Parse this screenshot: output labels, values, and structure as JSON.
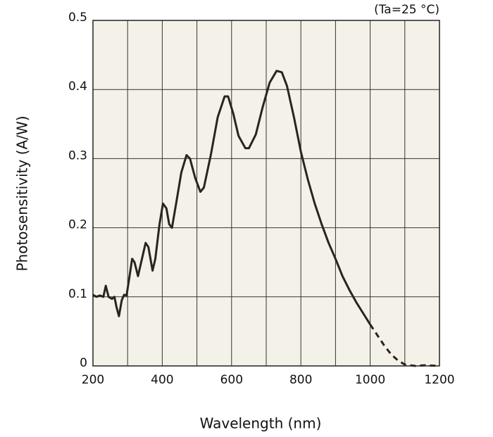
{
  "chart_data": {
    "type": "line",
    "annotation": "(Ta=25 °C)",
    "xlabel": "Wavelength (nm)",
    "ylabel": "Photosensitivity (A/W)",
    "xlim": [
      200,
      1200
    ],
    "ylim": [
      0,
      0.5
    ],
    "xticks": [
      200,
      400,
      600,
      800,
      1000,
      1200
    ],
    "xgrid": [
      200,
      300,
      400,
      500,
      600,
      700,
      800,
      900,
      1000,
      1100,
      1200
    ],
    "yticks": [
      0,
      0.1,
      0.2,
      0.3,
      0.4,
      0.5
    ],
    "grid": true,
    "background": "#f4f2e8",
    "series": [
      {
        "color": "#2a2420",
        "dashed": false,
        "x": [
          200,
          210,
          220,
          230,
          237,
          245,
          255,
          262,
          268,
          275,
          283,
          290,
          297,
          305,
          313,
          320,
          330,
          340,
          352,
          360,
          372,
          380,
          392,
          402,
          412,
          420,
          428,
          440,
          455,
          470,
          480,
          495,
          510,
          520,
          540,
          560,
          580,
          590,
          605,
          620,
          640,
          650,
          670,
          690,
          710,
          730,
          745,
          760,
          780,
          800,
          820,
          840,
          860,
          880,
          900,
          920,
          940,
          960,
          980,
          1000
        ],
        "values": [
          0.103,
          0.1,
          0.102,
          0.1,
          0.116,
          0.1,
          0.097,
          0.1,
          0.085,
          0.072,
          0.095,
          0.103,
          0.102,
          0.128,
          0.155,
          0.15,
          0.13,
          0.152,
          0.178,
          0.172,
          0.138,
          0.155,
          0.205,
          0.235,
          0.228,
          0.205,
          0.2,
          0.235,
          0.28,
          0.305,
          0.3,
          0.272,
          0.252,
          0.258,
          0.305,
          0.36,
          0.39,
          0.39,
          0.365,
          0.333,
          0.315,
          0.315,
          0.335,
          0.375,
          0.41,
          0.427,
          0.425,
          0.405,
          0.36,
          0.31,
          0.27,
          0.235,
          0.205,
          0.178,
          0.155,
          0.13,
          0.11,
          0.092,
          0.076,
          0.06
        ]
      },
      {
        "color": "#2a2420",
        "dashed": true,
        "x": [
          1000,
          1020,
          1040,
          1060,
          1080,
          1100,
          1130,
          1160,
          1200
        ],
        "values": [
          0.06,
          0.045,
          0.03,
          0.017,
          0.008,
          0.002,
          0,
          0.001,
          0
        ]
      }
    ]
  }
}
